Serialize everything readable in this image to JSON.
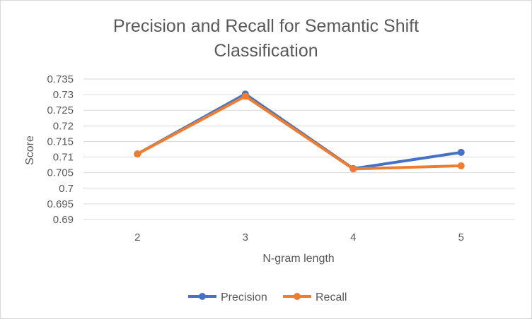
{
  "chart_data": {
    "type": "line",
    "title_lines": [
      "Precision and Recall for Semantic Shift",
      "Classification"
    ],
    "xlabel": "N-gram length",
    "ylabel": "Score",
    "categories": [
      "2",
      "3",
      "4",
      "5"
    ],
    "ylim": [
      0.69,
      0.735
    ],
    "yticks": [
      "0.69",
      "0.695",
      "0.7",
      "0.705",
      "0.71",
      "0.715",
      "0.72",
      "0.725",
      "0.73",
      "0.735"
    ],
    "grid": true,
    "legend_position": "bottom",
    "series": [
      {
        "name": "Precision",
        "color": "#4472c4",
        "values": [
          0.711,
          0.7302,
          0.7063,
          0.7115
        ]
      },
      {
        "name": "Recall",
        "color": "#ed7d31",
        "values": [
          0.711,
          0.7295,
          0.7062,
          0.7072
        ]
      }
    ]
  }
}
